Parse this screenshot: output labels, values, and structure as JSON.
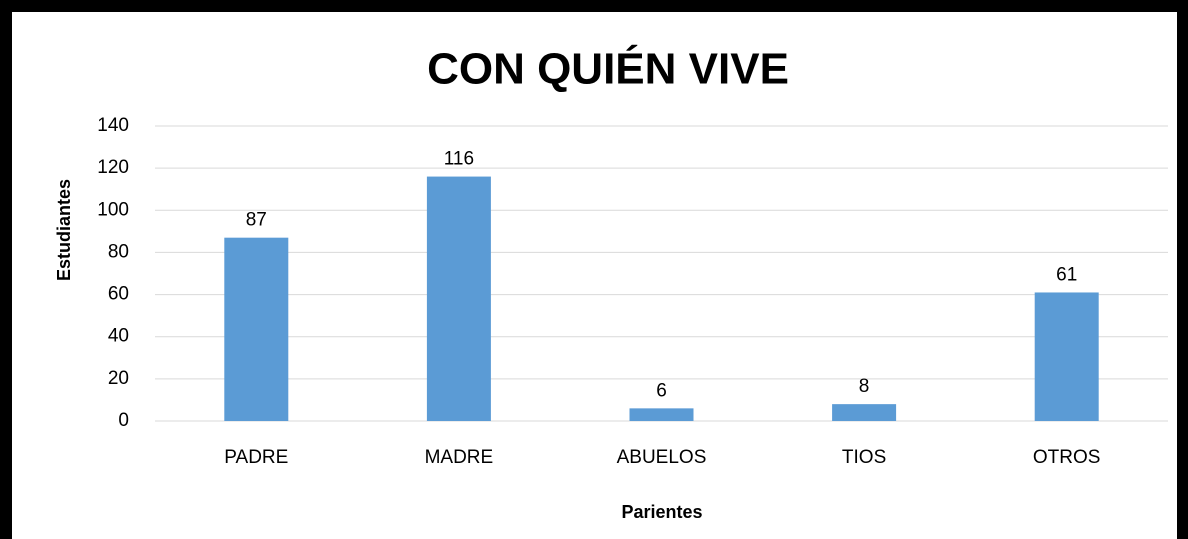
{
  "chart_data": {
    "type": "bar",
    "title": "CON QUIÉN VIVE",
    "x_label": "Parientes",
    "y_label": "Estudiantes",
    "categories": [
      "PADRE",
      "MADRE",
      "ABUELOS",
      "TIOS",
      "OTROS"
    ],
    "values": [
      87,
      116,
      6,
      8,
      61
    ],
    "color": "#5b9bd5",
    "ylim": [
      0,
      140
    ],
    "yticks": [
      0,
      20,
      40,
      60,
      80,
      100,
      120,
      140
    ],
    "grid": true
  }
}
